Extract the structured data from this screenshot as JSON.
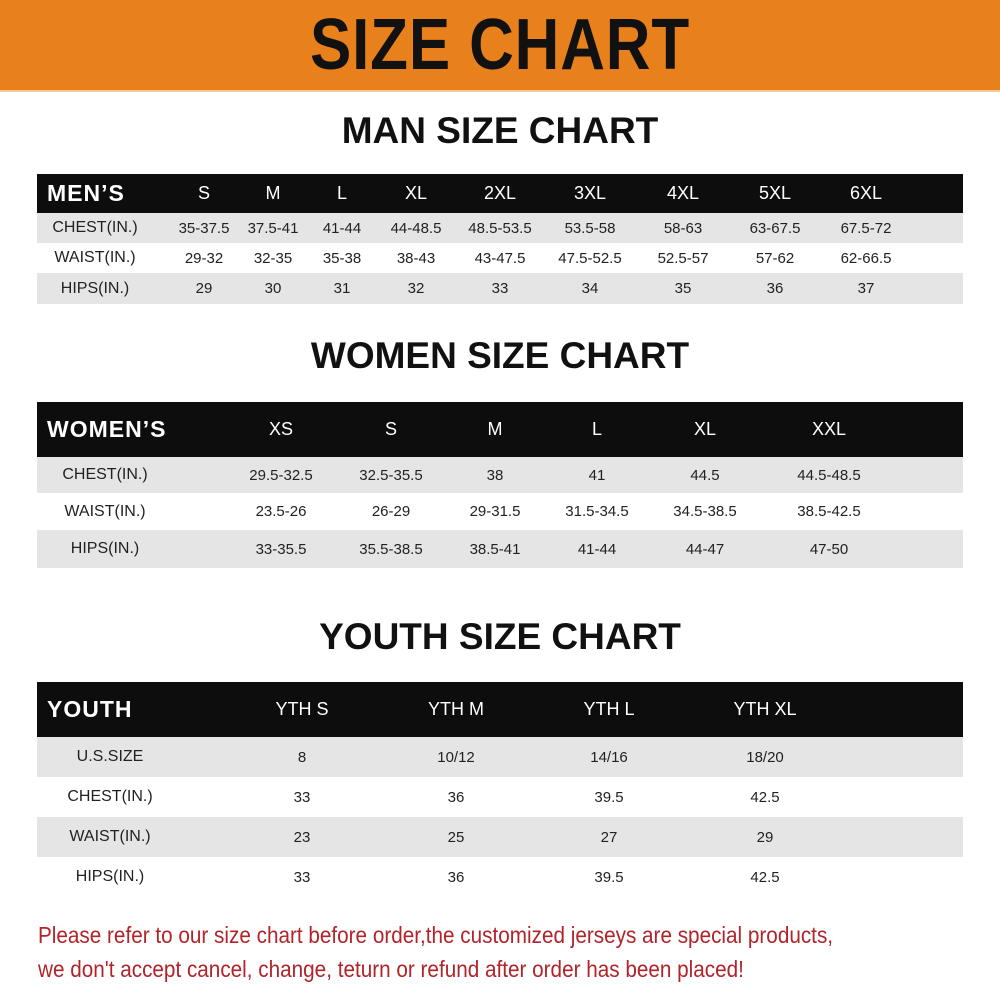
{
  "banner": {
    "title": "SIZE CHART",
    "color": "#e8801c"
  },
  "men": {
    "title": "MAN SIZE CHART",
    "header": [
      "MEN’S",
      "S",
      "M",
      "L",
      "XL",
      "2XL",
      "3XL",
      "4XL",
      "5XL",
      "6XL"
    ],
    "rows": [
      [
        "CHEST(IN.)",
        "35-37.5",
        "37.5-41",
        "41-44",
        "44-48.5",
        "48.5-53.5",
        "53.5-58",
        "58-63",
        "63-67.5",
        "67.5-72"
      ],
      [
        "WAIST(IN.)",
        "29-32",
        "32-35",
        "35-38",
        "38-43",
        "43-47.5",
        "47.5-52.5",
        "52.5-57",
        "57-62",
        "62-66.5"
      ],
      [
        "HIPS(IN.)",
        "29",
        "30",
        "31",
        "32",
        "33",
        "34",
        "35",
        "36",
        "37"
      ]
    ]
  },
  "women": {
    "title": "WOMEN SIZE CHART",
    "header": [
      "WOMEN’S",
      "XS",
      "S",
      "M",
      "L",
      "XL",
      "XXL"
    ],
    "rows": [
      [
        "CHEST(IN.)",
        "29.5-32.5",
        "32.5-35.5",
        "38",
        "41",
        "44.5",
        "44.5-48.5"
      ],
      [
        "WAIST(IN.)",
        "23.5-26",
        "26-29",
        "29-31.5",
        "31.5-34.5",
        "34.5-38.5",
        "38.5-42.5"
      ],
      [
        "HIPS(IN.)",
        "33-35.5",
        "35.5-38.5",
        "38.5-41",
        "41-44",
        "44-47",
        "47-50"
      ]
    ]
  },
  "youth": {
    "title": "YOUTH SIZE CHART",
    "header": [
      "YOUTH",
      "YTH S",
      "YTH M",
      "YTH L",
      "YTH XL"
    ],
    "rows": [
      [
        "U.S.SIZE",
        "8",
        "10/12",
        "14/16",
        "18/20"
      ],
      [
        "CHEST(IN.)",
        "33",
        "36",
        "39.5",
        "42.5"
      ],
      [
        "WAIST(IN.)",
        "23",
        "25",
        "27",
        "29"
      ],
      [
        "HIPS(IN.)",
        "33",
        "36",
        "39.5",
        "42.5"
      ]
    ]
  },
  "footer": {
    "line1": "Please refer to our size chart before order,the customized jerseys are special products,",
    "line2": "we don't accept cancel, change, teturn or refund after order has been placed!",
    "color": "#b0242a"
  }
}
